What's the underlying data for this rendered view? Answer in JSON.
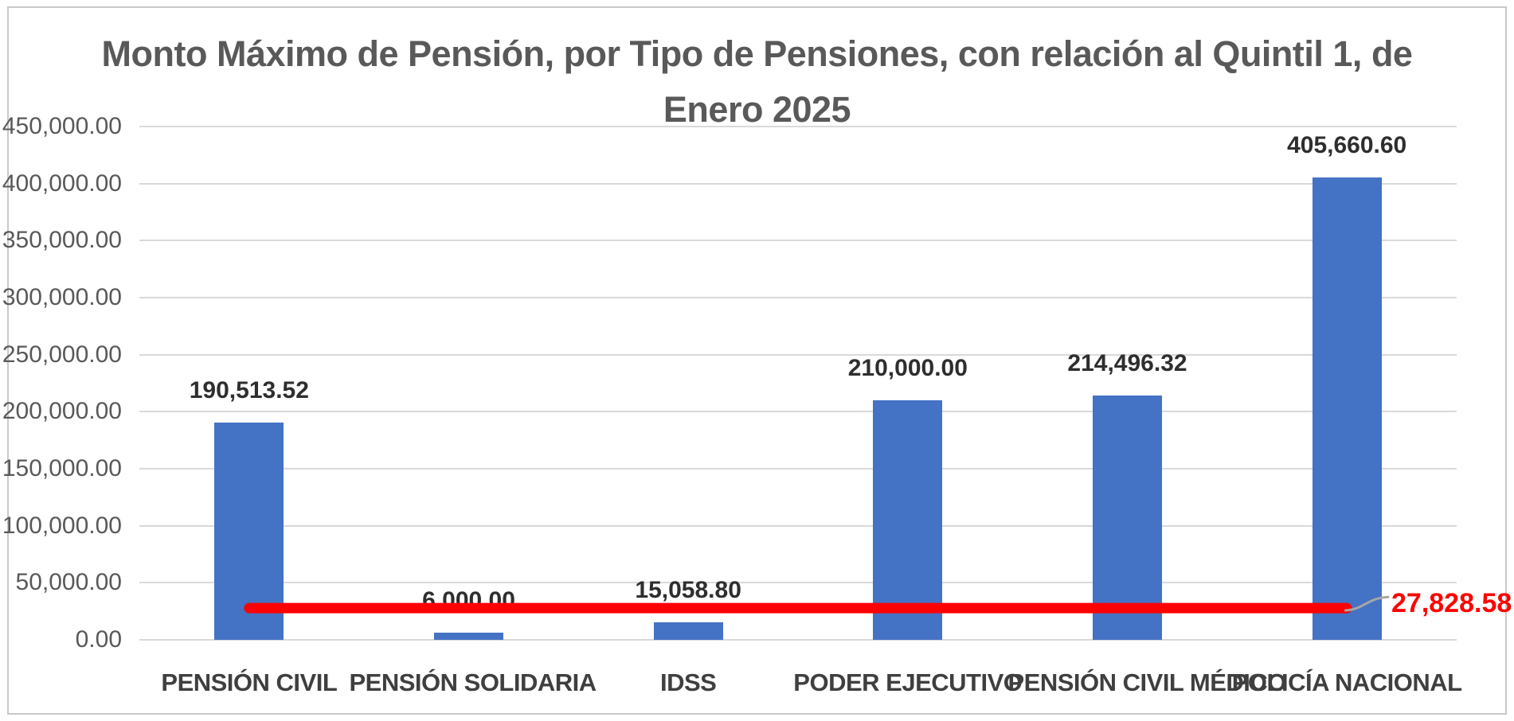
{
  "chart_data": {
    "type": "bar",
    "title": "Monto Máximo de Pensión, por Tipo de Pensiones, con relación al Quintil 1, de Enero 2025",
    "title_lines": [
      "Monto Máximo de Pensión, por Tipo de Pensiones, con relación al Quintil 1, de",
      "Enero 2025"
    ],
    "categories": [
      "PENSIÓN CIVIL",
      "PENSIÓN SOLIDARIA",
      "IDSS",
      "PODER EJECUTIVO",
      "PENSIÓN CIVIL MÉDICO",
      "POLICÍA NACIONAL"
    ],
    "values": [
      190513.52,
      6000.0,
      15058.8,
      210000.0,
      214496.32,
      405660.6
    ],
    "value_labels": [
      "190,513.52",
      "6,000.00",
      "15,058.80",
      "210,000.00",
      "214,496.32",
      "405,660.60"
    ],
    "reference_line": {
      "value": 27828.58,
      "label": "27,828.58"
    },
    "xlabel": "",
    "ylabel": "",
    "ylim": [
      0,
      450000
    ],
    "grid": true,
    "legend": false,
    "y_ticks": [
      {
        "value": 0,
        "label": "0.00"
      },
      {
        "value": 50000,
        "label": "50,000.00"
      },
      {
        "value": 100000,
        "label": "100,000.00"
      },
      {
        "value": 150000,
        "label": "150,000.00"
      },
      {
        "value": 200000,
        "label": "200,000.00"
      },
      {
        "value": 250000,
        "label": "250,000.00"
      },
      {
        "value": 300000,
        "label": "300,000.00"
      },
      {
        "value": 350000,
        "label": "350,000.00"
      },
      {
        "value": 400000,
        "label": "400,000.00"
      },
      {
        "value": 450000,
        "label": "450,000.00"
      }
    ],
    "colors": {
      "bar": "#4472C4",
      "reference_line": "#FF0000",
      "reference_label": "#FF0000",
      "grid": "#D9D9D9",
      "title_text": "#595959",
      "axis_text": "#595959",
      "category_text": "#3F3F3F",
      "data_label_text": "#2E2E2E",
      "frame_border": "#C9C9C9",
      "leader_line": "#A6A6A6"
    }
  }
}
